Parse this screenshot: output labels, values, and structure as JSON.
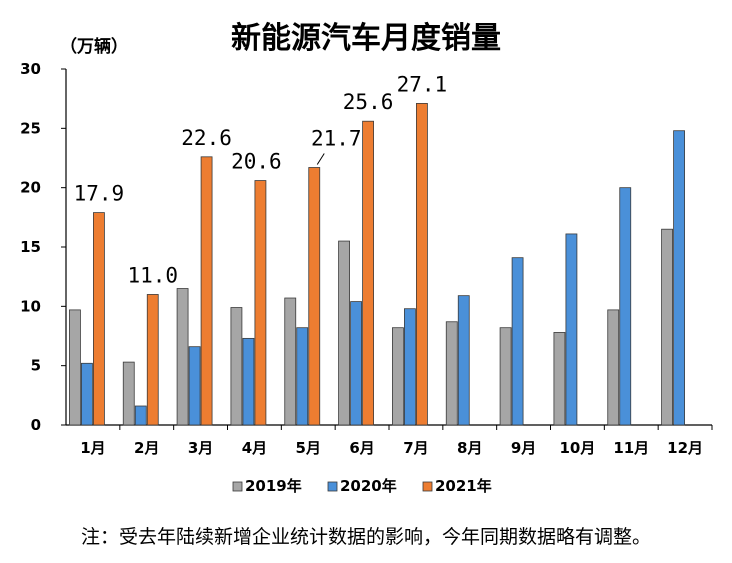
{
  "chart_data": {
    "type": "bar",
    "title": "新能源汽车月度销量",
    "unit_label": "（万辆）",
    "categories": [
      "1月",
      "2月",
      "3月",
      "4月",
      "5月",
      "6月",
      "7月",
      "8月",
      "9月",
      "10月",
      "11月",
      "12月"
    ],
    "y_ticks": [
      "0",
      "5",
      "10",
      "15",
      "20",
      "25",
      "30"
    ],
    "ylim": [
      0,
      30
    ],
    "grid": false,
    "legend_position": "bottom",
    "series": [
      {
        "name": "2019年",
        "color": "#a6a6a6",
        "values": [
          9.7,
          5.3,
          11.5,
          9.9,
          10.7,
          15.5,
          8.2,
          8.7,
          8.2,
          7.8,
          9.7,
          16.5
        ]
      },
      {
        "name": "2020年",
        "color": "#4a90d9",
        "values": [
          5.2,
          1.6,
          6.6,
          7.3,
          8.2,
          10.4,
          9.8,
          10.9,
          14.1,
          16.1,
          20.0,
          24.8
        ]
      },
      {
        "name": "2021年",
        "color": "#ed7d31",
        "values": [
          17.9,
          11.0,
          22.6,
          20.6,
          21.7,
          25.6,
          27.1,
          null,
          null,
          null,
          null,
          null
        ]
      }
    ],
    "data_labels": [
      "17.9",
      "11.0",
      "22.6",
      "20.6",
      "21.7",
      "25.6",
      "27.1"
    ]
  },
  "footnote": "注：受去年陆续新增企业统计数据的影响，今年同期数据略有调整。"
}
